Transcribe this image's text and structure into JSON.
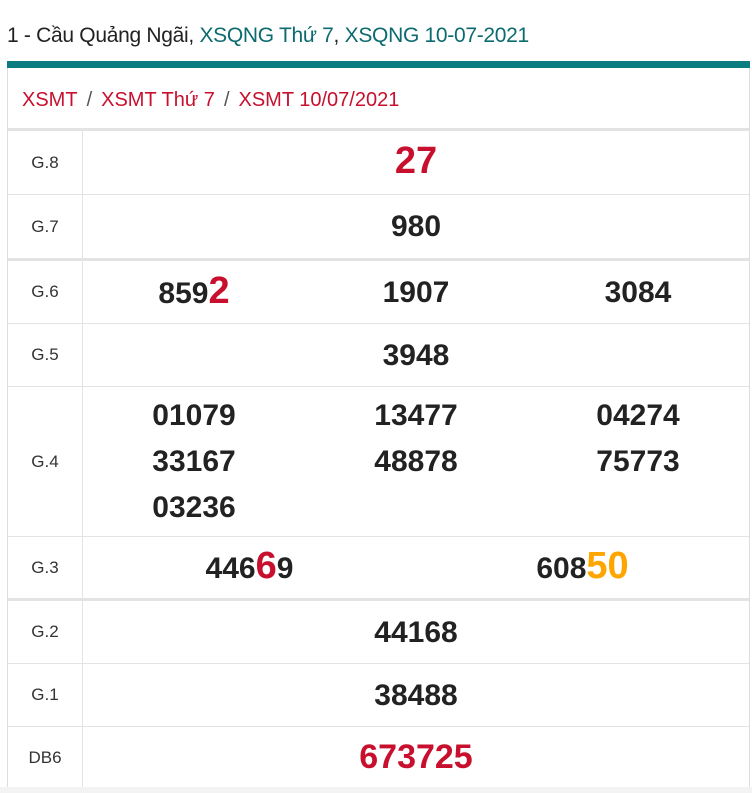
{
  "header": {
    "prefix": "1 - Cầu Quảng Ngãi, ",
    "link1": "XSQNG Thứ 7",
    "comma": ", ",
    "link2": "XSQNG 10-07-2021"
  },
  "breadcrumb": [
    {
      "label": "XSMT"
    },
    {
      "label": "XSMT Thứ 7"
    },
    {
      "label": "XSMT 10/07/2021"
    }
  ],
  "breadcrumb_sep": "/",
  "colors": {
    "teal": "#0b7c80",
    "red": "#c8102e",
    "orange": "#ffa500"
  },
  "rows": [
    {
      "label": "G.8",
      "cols": 1,
      "height": 63,
      "numbers": [
        {
          "text": "",
          "hl": "27",
          "hl_color": "#c8102e"
        }
      ]
    },
    {
      "label": "G.7",
      "cols": 1,
      "height": 63,
      "thick": true,
      "numbers": [
        {
          "text": "980",
          "hl": ""
        }
      ]
    },
    {
      "label": "G.6",
      "cols": 3,
      "height": 62,
      "numbers": [
        {
          "text": "859",
          "hl": "2",
          "hl_color": "#c8102e"
        },
        {
          "text": "1907",
          "hl": ""
        },
        {
          "text": "3084",
          "hl": ""
        }
      ]
    },
    {
      "label": "G.5",
      "cols": 1,
      "height": 62,
      "numbers": [
        {
          "text": "3948",
          "hl": ""
        }
      ]
    },
    {
      "label": "G.4",
      "cols": 3,
      "height": 149,
      "numbers": [
        {
          "text": "01079",
          "hl": ""
        },
        {
          "text": "13477",
          "hl": ""
        },
        {
          "text": "04274",
          "hl": ""
        },
        {
          "text": "33167",
          "hl": ""
        },
        {
          "text": "48878",
          "hl": ""
        },
        {
          "text": "75773",
          "hl": ""
        },
        {
          "text": "03236",
          "hl": ""
        }
      ]
    },
    {
      "label": "G.3",
      "cols": 2,
      "height": 61,
      "thick": true,
      "numbers": [
        {
          "text": "446",
          "hl": "6",
          "tail": "9",
          "hl_color": "#c8102e"
        },
        {
          "text": "608",
          "hl": "50",
          "hl_color": "#ffa500"
        }
      ]
    },
    {
      "label": "G.2",
      "cols": 1,
      "height": 62,
      "numbers": [
        {
          "text": "44168",
          "hl": ""
        }
      ]
    },
    {
      "label": "G.1",
      "cols": 1,
      "height": 62,
      "numbers": [
        {
          "text": "38488",
          "hl": ""
        }
      ]
    },
    {
      "label": "DB6",
      "cols": 1,
      "height": 62,
      "numbers": [
        {
          "text": "",
          "hl": "673725",
          "hl_color": "#c8102e"
        }
      ]
    }
  ]
}
